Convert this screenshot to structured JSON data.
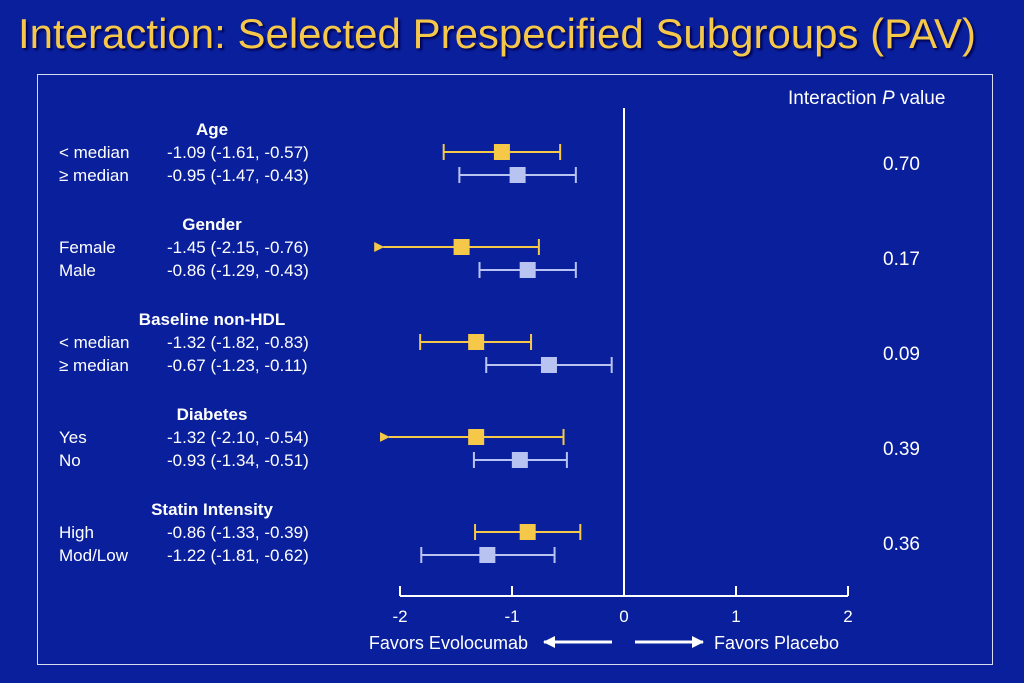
{
  "slide": {
    "title": "Interaction: Selected Prespecified Subgroups (PAV)"
  },
  "chart_data": {
    "type": "forest",
    "pvalue_header": {
      "prefix": "Interaction ",
      "italic": "P",
      "suffix": " value"
    },
    "groups": [
      {
        "name": "Age",
        "pvalue": "0.70",
        "rows": [
          {
            "label": "< median",
            "ci_text": "-1.09 (-1.61, -0.57)",
            "est": -1.09,
            "lo": -1.61,
            "hi": -0.57,
            "arrow": false,
            "color": "#f5c84a"
          },
          {
            "label": "≥ median",
            "ci_text": "-0.95 (-1.47, -0.43)",
            "est": -0.95,
            "lo": -1.47,
            "hi": -0.43,
            "arrow": false,
            "color": "#b9c3f2"
          }
        ]
      },
      {
        "name": "Gender",
        "pvalue": "0.17",
        "rows": [
          {
            "label": "Female",
            "ci_text": "-1.45 (-2.15, -0.76)",
            "est": -1.45,
            "lo": -2.15,
            "hi": -0.76,
            "arrow": true,
            "color": "#f5c84a"
          },
          {
            "label": "Male",
            "ci_text": "-0.86 (-1.29, -0.43)",
            "est": -0.86,
            "lo": -1.29,
            "hi": -0.43,
            "arrow": false,
            "color": "#b9c3f2"
          }
        ]
      },
      {
        "name": "Baseline non-HDL",
        "pvalue": "0.09",
        "rows": [
          {
            "label": "< median",
            "ci_text": "-1.32 (-1.82, -0.83)",
            "est": -1.32,
            "lo": -1.82,
            "hi": -0.83,
            "arrow": false,
            "color": "#f5c84a"
          },
          {
            "label": "≥ median",
            "ci_text": "-0.67 (-1.23, -0.11)",
            "est": -0.67,
            "lo": -1.23,
            "hi": -0.11,
            "arrow": false,
            "color": "#b9c3f2"
          }
        ]
      },
      {
        "name": "Diabetes",
        "pvalue": "0.39",
        "rows": [
          {
            "label": "Yes",
            "ci_text": "-1.32 (-2.10, -0.54)",
            "est": -1.32,
            "lo": -2.1,
            "hi": -0.54,
            "arrow": true,
            "color": "#f5c84a"
          },
          {
            "label": "No",
            "ci_text": "-0.93 (-1.34, -0.51)",
            "est": -0.93,
            "lo": -1.34,
            "hi": -0.51,
            "arrow": false,
            "color": "#b9c3f2"
          }
        ]
      },
      {
        "name": "Statin Intensity",
        "pvalue": "0.36",
        "rows": [
          {
            "label": "High",
            "ci_text": "-0.86 (-1.33, -0.39)",
            "est": -0.86,
            "lo": -1.33,
            "hi": -0.39,
            "arrow": false,
            "color": "#f5c84a"
          },
          {
            "label": "Mod/Low",
            "ci_text": "-1.22 (-1.81, -0.62)",
            "est": -1.22,
            "lo": -1.81,
            "hi": -0.62,
            "arrow": false,
            "color": "#b9c3f2"
          }
        ]
      }
    ],
    "x_axis": {
      "ticks": [
        -2,
        -1,
        0,
        1,
        2
      ],
      "tick_labels": [
        "-2",
        "-1",
        "0",
        "1",
        "2"
      ],
      "range": [
        -2,
        2
      ],
      "reference_line": 0
    },
    "direction_labels": {
      "left": "Favors Evolocumab",
      "right": "Favors Placebo"
    }
  }
}
